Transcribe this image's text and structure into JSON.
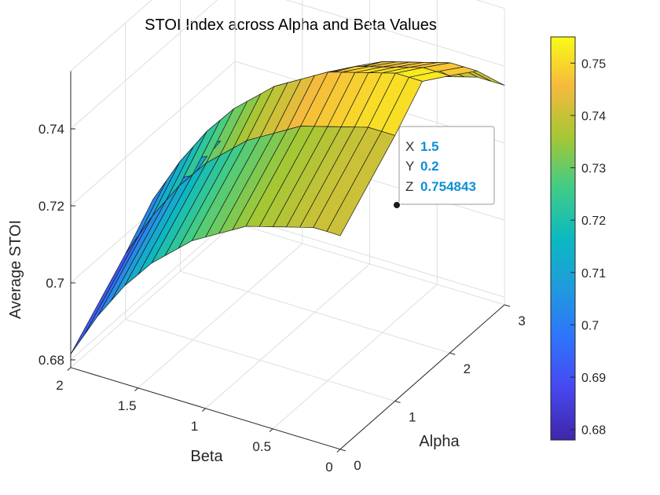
{
  "chart_data": {
    "type": "surface",
    "title": "STOI Index across Alpha and Beta Values",
    "xlabel": "Alpha",
    "ylabel": "Beta",
    "zlabel": "Average STOI",
    "xlim": [
      0,
      3
    ],
    "ylim": [
      0,
      2
    ],
    "zlim": [
      0.678,
      0.755
    ],
    "xticks": [
      0,
      1,
      2,
      3
    ],
    "yticks": [
      0,
      0.5,
      1,
      1.5,
      2
    ],
    "zticks": [
      0.68,
      0.7,
      0.72,
      0.74
    ],
    "xtick_labels": [
      "0",
      "1",
      "2",
      "3"
    ],
    "ytick_labels": [
      "0",
      "0.5",
      "1",
      "1.5",
      "2"
    ],
    "ztick_labels": [
      "0.68",
      "0.7",
      "0.72",
      "0.74"
    ],
    "colormap": "parula",
    "colorbar": {
      "ticks": [
        0.68,
        0.69,
        0.7,
        0.71,
        0.72,
        0.73,
        0.74,
        0.75
      ],
      "tick_labels": [
        "0.68",
        "0.69",
        "0.7",
        "0.71",
        "0.72",
        "0.73",
        "0.74",
        "0.75"
      ],
      "range": [
        0.678,
        0.755
      ]
    },
    "alpha_values": [
      0,
      1,
      1.5,
      2,
      2.5,
      3
    ],
    "beta_values": [
      0,
      0.1,
      0.2,
      0.3,
      0.4,
      0.5,
      0.6,
      0.7,
      0.8,
      0.9,
      1.0,
      1.1,
      1.2,
      1.3,
      1.4,
      1.5,
      1.6,
      1.7,
      1.8,
      1.9,
      2.0
    ],
    "alpha_profile": [
      0.7335,
      0.747,
      0.7548,
      0.75,
      0.745,
      0.735
    ],
    "beta_drop": [
      0,
      0,
      0,
      0.001,
      0.002,
      0.003,
      0.004,
      0.005,
      0.007,
      0.009,
      0.011,
      0.013,
      0.016,
      0.019,
      0.022,
      0.026,
      0.03,
      0.035,
      0.04,
      0.046,
      0.052
    ],
    "datatip": {
      "x_key": "X",
      "x_value": "1.5",
      "y_key": "Y",
      "y_value": "0.2",
      "z_key": "Z",
      "z_value": "0.754843"
    }
  }
}
